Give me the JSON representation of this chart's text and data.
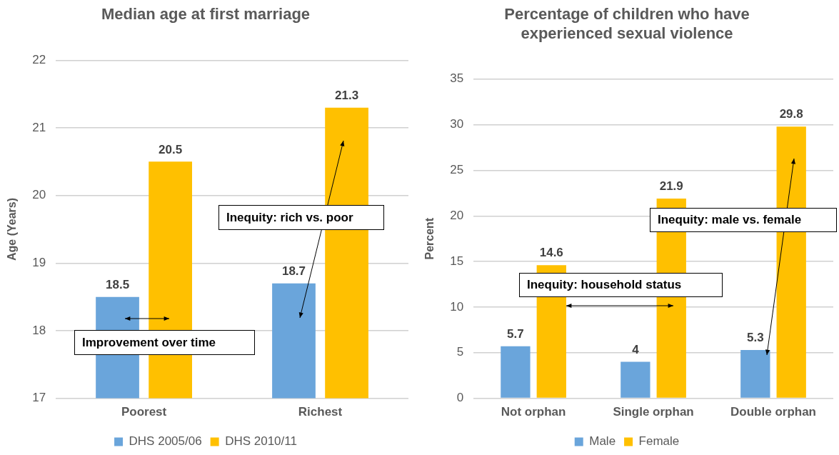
{
  "chart_data": [
    {
      "type": "bar",
      "title": "Median age at first marriage",
      "ylabel": "Age (Years)",
      "categories": [
        "Poorest",
        "Richest"
      ],
      "series": [
        {
          "name": "DHS 2005/06",
          "color": "#6aa5db",
          "values": [
            18.5,
            18.7
          ]
        },
        {
          "name": "DHS 2010/11",
          "color": "#ffc000",
          "values": [
            20.5,
            21.3
          ]
        }
      ],
      "ylim": [
        17,
        22
      ],
      "yticks": [
        17,
        18,
        19,
        20,
        21,
        22
      ],
      "grid": "y",
      "legend": "bottom",
      "data_labels": true,
      "annotations": [
        "Improvement over time",
        "Inequity: rich vs. poor"
      ]
    },
    {
      "type": "bar",
      "title": "Percentage of children who have experienced sexual violence",
      "ylabel": "Percent",
      "categories": [
        "Not orphan",
        "Single orphan",
        "Double orphan"
      ],
      "series": [
        {
          "name": "Male",
          "color": "#6aa5db",
          "values": [
            5.7,
            4,
            5.3
          ]
        },
        {
          "name": "Female",
          "color": "#ffc000",
          "values": [
            14.6,
            21.9,
            29.8
          ]
        }
      ],
      "ylim": [
        0,
        35
      ],
      "yticks": [
        0,
        5,
        10,
        15,
        20,
        25,
        30,
        35
      ],
      "grid": "y",
      "legend": "bottom",
      "data_labels": true,
      "annotations": [
        "Inequity: household status",
        "Inequity: male vs. female"
      ]
    }
  ]
}
